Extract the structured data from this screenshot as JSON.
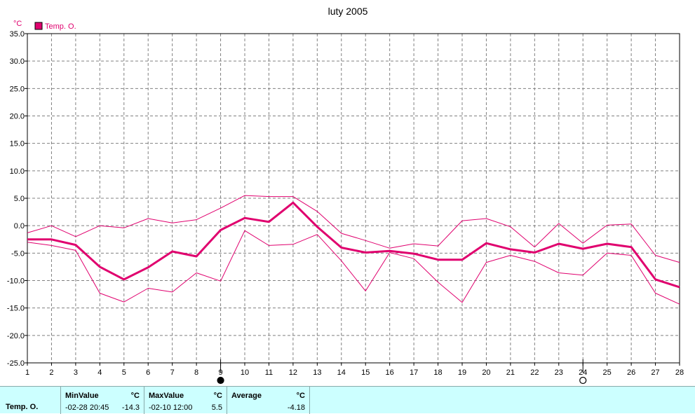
{
  "chart_data": {
    "type": "line",
    "title": "luty 2005",
    "ylabel": "°C",
    "ylim": [
      -25,
      35
    ],
    "yticks": [
      "35.0",
      "30.0",
      "25.0",
      "20.0",
      "15.0",
      "10.0",
      "5.0",
      "0.0",
      "-5.0",
      "-10.0",
      "-15.0",
      "-20.0",
      "-25.0"
    ],
    "x": [
      1,
      2,
      3,
      4,
      5,
      6,
      7,
      8,
      9,
      10,
      11,
      12,
      13,
      14,
      15,
      16,
      17,
      18,
      19,
      20,
      21,
      22,
      23,
      24,
      25,
      26,
      27,
      28
    ],
    "xlim": [
      1,
      28
    ],
    "grid": true,
    "legend": "top-left",
    "series": [
      {
        "name": "Temp. O.",
        "role": "average",
        "values": [
          -2.5,
          -2.5,
          -3.5,
          -7.5,
          -9.8,
          -7.6,
          -4.7,
          -5.6,
          -0.8,
          1.4,
          0.7,
          4.2,
          -0.2,
          -4.0,
          -4.9,
          -4.6,
          -5.1,
          -6.2,
          -6.2,
          -3.2,
          -4.3,
          -4.9,
          -3.3,
          -4.2,
          -3.3,
          -3.9,
          -9.8,
          -11.2
        ]
      },
      {
        "role": "max",
        "values": [
          -1.3,
          0.0,
          -2.0,
          0.0,
          -0.4,
          1.3,
          0.5,
          1.1,
          3.2,
          5.5,
          5.3,
          5.3,
          2.6,
          -1.4,
          -2.7,
          -4.1,
          -3.3,
          -3.7,
          0.9,
          1.3,
          -0.2,
          -3.9,
          0.4,
          -3.2,
          0.1,
          0.3,
          -5.4,
          -6.7
        ]
      },
      {
        "role": "min",
        "values": [
          -3.0,
          -3.6,
          -4.5,
          -12.3,
          -13.9,
          -11.4,
          -12.1,
          -8.6,
          -10.1,
          -0.9,
          -3.6,
          -3.4,
          -1.6,
          -6.4,
          -11.9,
          -4.9,
          -6.0,
          -10.3,
          -14.0,
          -6.7,
          -5.4,
          -6.5,
          -8.6,
          -9.0,
          -5.0,
          -5.4,
          -12.3,
          -14.3
        ]
      }
    ],
    "markers": [
      {
        "x": 9,
        "symbol": "filled-circle"
      },
      {
        "x": 24,
        "symbol": "open-circle"
      }
    ],
    "colors": {
      "series": "#e0006e",
      "grid": "#808080"
    }
  },
  "stats": {
    "series_label": "Temp. O.",
    "min": {
      "label": "MinValue",
      "unit": "°C",
      "datetime": "-02-28  20:45",
      "value": "-14.3"
    },
    "max": {
      "label": "MaxValue",
      "unit": "°C",
      "datetime": "-02-10  12:00",
      "value": "5.5"
    },
    "avg": {
      "label": "Average",
      "unit": "°C",
      "value": "-4.18"
    }
  }
}
